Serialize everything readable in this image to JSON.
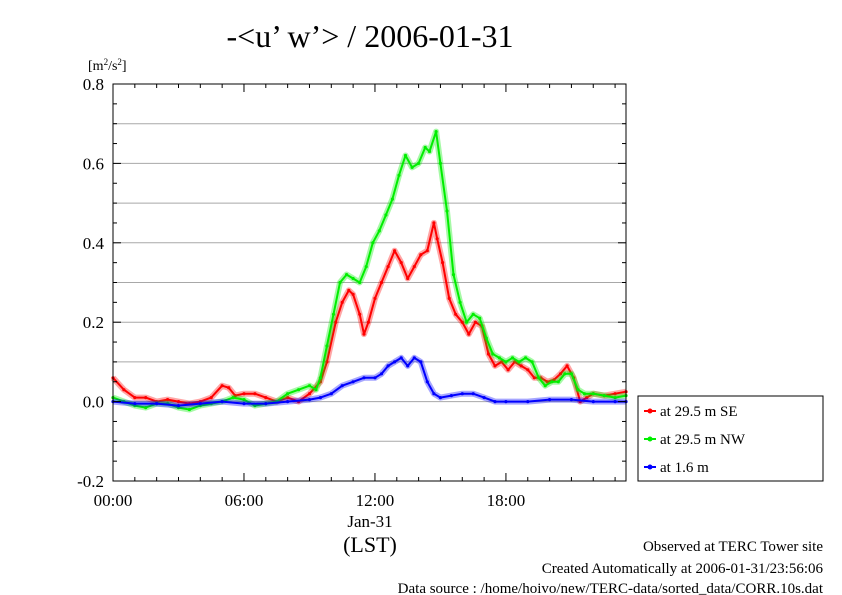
{
  "chart_data": {
    "type": "line",
    "title": "-<u’ w’> / 2006-01-31",
    "ylabel": "[m2/s2]",
    "ylabel_base": "[m",
    "ylabel_sup1": "2",
    "ylabel_mid": "/s",
    "ylabel_sup2": "2",
    "ylabel_end": "]",
    "xlabel": "(LST)",
    "date_label": "Jan-31",
    "x_unit": "hours LST",
    "xlim": [
      0,
      23.5
    ],
    "ylim": [
      -0.2,
      0.8
    ],
    "y_ticks": [
      -0.2,
      0.0,
      0.2,
      0.4,
      0.6,
      0.8
    ],
    "y_tick_labels": [
      "-0.2",
      "0.0",
      "0.2",
      "0.4",
      "0.6",
      "0.8"
    ],
    "x_ticks": [
      0,
      6,
      12,
      18
    ],
    "x_tick_labels": [
      "00:00",
      "06:00",
      "12:00",
      "18:00"
    ],
    "grid": "horizontal",
    "legend_position": "right",
    "series": [
      {
        "name": "at 29.5 m SE",
        "color": "#ff0000",
        "points": [
          [
            0,
            0.06
          ],
          [
            0.5,
            0.03
          ],
          [
            1,
            0.01
          ],
          [
            1.5,
            0.01
          ],
          [
            2,
            0.0
          ],
          [
            2.5,
            0.005
          ],
          [
            3,
            0.0
          ],
          [
            3.5,
            -0.005
          ],
          [
            4,
            0.0
          ],
          [
            4.5,
            0.01
          ],
          [
            5,
            0.04
          ],
          [
            5.3,
            0.035
          ],
          [
            5.6,
            0.015
          ],
          [
            6,
            0.02
          ],
          [
            6.5,
            0.02
          ],
          [
            7,
            0.01
          ],
          [
            7.5,
            0.0
          ],
          [
            8,
            0.01
          ],
          [
            8.5,
            0.0
          ],
          [
            9,
            0.02
          ],
          [
            9.5,
            0.05
          ],
          [
            9.8,
            0.1
          ],
          [
            10.2,
            0.2
          ],
          [
            10.5,
            0.25
          ],
          [
            10.8,
            0.28
          ],
          [
            11,
            0.27
          ],
          [
            11.3,
            0.22
          ],
          [
            11.5,
            0.17
          ],
          [
            11.7,
            0.2
          ],
          [
            12,
            0.26
          ],
          [
            12.3,
            0.3
          ],
          [
            12.6,
            0.34
          ],
          [
            12.9,
            0.38
          ],
          [
            13.2,
            0.35
          ],
          [
            13.5,
            0.31
          ],
          [
            13.8,
            0.34
          ],
          [
            14.1,
            0.37
          ],
          [
            14.4,
            0.38
          ],
          [
            14.7,
            0.45
          ],
          [
            14.85,
            0.41
          ],
          [
            15.1,
            0.35
          ],
          [
            15.4,
            0.26
          ],
          [
            15.7,
            0.22
          ],
          [
            16,
            0.2
          ],
          [
            16.3,
            0.17
          ],
          [
            16.6,
            0.2
          ],
          [
            16.9,
            0.19
          ],
          [
            17.2,
            0.12
          ],
          [
            17.5,
            0.09
          ],
          [
            17.8,
            0.1
          ],
          [
            18.1,
            0.08
          ],
          [
            18.4,
            0.1
          ],
          [
            18.7,
            0.09
          ],
          [
            19,
            0.08
          ],
          [
            19.3,
            0.06
          ],
          [
            19.6,
            0.06
          ],
          [
            19.9,
            0.05
          ],
          [
            20.2,
            0.055
          ],
          [
            20.5,
            0.07
          ],
          [
            20.8,
            0.09
          ],
          [
            21.1,
            0.06
          ],
          [
            21.4,
            0.0
          ],
          [
            21.7,
            0.01
          ],
          [
            22,
            0.02
          ],
          [
            22.5,
            0.015
          ],
          [
            23,
            0.02
          ],
          [
            23.5,
            0.025
          ]
        ]
      },
      {
        "name": "at 29.5 m NW",
        "color": "#00ee00",
        "points": [
          [
            0,
            0.01
          ],
          [
            0.5,
            0.0
          ],
          [
            1,
            -0.01
          ],
          [
            1.5,
            -0.015
          ],
          [
            2,
            -0.005
          ],
          [
            2.5,
            -0.005
          ],
          [
            3,
            -0.015
          ],
          [
            3.5,
            -0.02
          ],
          [
            4,
            -0.01
          ],
          [
            4.5,
            -0.005
          ],
          [
            5,
            0.0
          ],
          [
            5.5,
            0.01
          ],
          [
            6,
            0.005
          ],
          [
            6.5,
            -0.01
          ],
          [
            7,
            -0.005
          ],
          [
            7.5,
            0.0
          ],
          [
            8,
            0.02
          ],
          [
            8.5,
            0.03
          ],
          [
            9,
            0.04
          ],
          [
            9.3,
            0.03
          ],
          [
            9.5,
            0.06
          ],
          [
            9.8,
            0.14
          ],
          [
            10.1,
            0.22
          ],
          [
            10.4,
            0.3
          ],
          [
            10.7,
            0.32
          ],
          [
            11,
            0.31
          ],
          [
            11.3,
            0.3
          ],
          [
            11.6,
            0.34
          ],
          [
            11.9,
            0.4
          ],
          [
            12.2,
            0.43
          ],
          [
            12.5,
            0.47
          ],
          [
            12.8,
            0.51
          ],
          [
            13.1,
            0.57
          ],
          [
            13.4,
            0.62
          ],
          [
            13.7,
            0.59
          ],
          [
            14,
            0.6
          ],
          [
            14.3,
            0.64
          ],
          [
            14.5,
            0.63
          ],
          [
            14.8,
            0.68
          ],
          [
            15,
            0.6
          ],
          [
            15.3,
            0.48
          ],
          [
            15.6,
            0.32
          ],
          [
            15.9,
            0.25
          ],
          [
            16.2,
            0.2
          ],
          [
            16.5,
            0.22
          ],
          [
            16.8,
            0.21
          ],
          [
            17.1,
            0.16
          ],
          [
            17.4,
            0.12
          ],
          [
            17.7,
            0.11
          ],
          [
            18,
            0.1
          ],
          [
            18.3,
            0.11
          ],
          [
            18.6,
            0.1
          ],
          [
            18.9,
            0.11
          ],
          [
            19.2,
            0.1
          ],
          [
            19.5,
            0.06
          ],
          [
            19.8,
            0.04
          ],
          [
            20.1,
            0.05
          ],
          [
            20.4,
            0.05
          ],
          [
            20.7,
            0.07
          ],
          [
            21,
            0.07
          ],
          [
            21.3,
            0.03
          ],
          [
            21.6,
            0.02
          ],
          [
            22,
            0.02
          ],
          [
            22.5,
            0.015
          ],
          [
            23,
            0.01
          ],
          [
            23.5,
            0.015
          ]
        ]
      },
      {
        "name": "at 1.6 m",
        "color": "#0000ff",
        "points": [
          [
            0,
            0.0
          ],
          [
            1,
            -0.005
          ],
          [
            2,
            -0.005
          ],
          [
            3,
            -0.01
          ],
          [
            4,
            -0.005
          ],
          [
            5,
            0.0
          ],
          [
            6,
            -0.005
          ],
          [
            7,
            -0.005
          ],
          [
            8,
            0.0
          ],
          [
            9,
            0.005
          ],
          [
            9.5,
            0.01
          ],
          [
            10,
            0.02
          ],
          [
            10.5,
            0.04
          ],
          [
            11,
            0.05
          ],
          [
            11.5,
            0.06
          ],
          [
            12,
            0.06
          ],
          [
            12.3,
            0.07
          ],
          [
            12.6,
            0.09
          ],
          [
            12.9,
            0.1
          ],
          [
            13.2,
            0.11
          ],
          [
            13.5,
            0.09
          ],
          [
            13.8,
            0.11
          ],
          [
            14.1,
            0.1
          ],
          [
            14.4,
            0.05
          ],
          [
            14.7,
            0.02
          ],
          [
            15,
            0.01
          ],
          [
            15.5,
            0.015
          ],
          [
            16,
            0.02
          ],
          [
            16.5,
            0.02
          ],
          [
            17,
            0.01
          ],
          [
            17.5,
            0.0
          ],
          [
            18,
            0.0
          ],
          [
            19,
            0.0
          ],
          [
            20,
            0.005
          ],
          [
            21,
            0.005
          ],
          [
            22,
            0.0
          ],
          [
            23,
            0.0
          ],
          [
            23.5,
            0.0
          ]
        ]
      }
    ]
  },
  "footer": {
    "line1": "Observed at TERC Tower site",
    "line2": "Created Automatically at 2006-01-31/23:56:06",
    "line3": "Data source : /home/hoivo/new/TERC-data/sorted_data/CORR.10s.dat"
  }
}
